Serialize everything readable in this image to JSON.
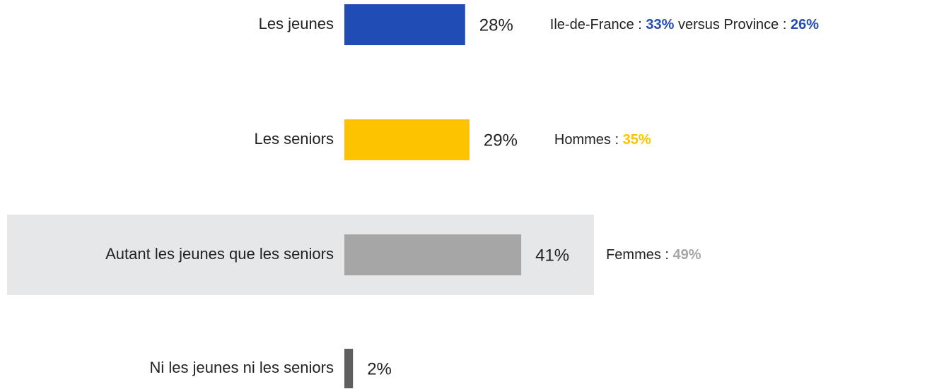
{
  "chart_data": {
    "type": "bar",
    "orientation": "horizontal",
    "categories": [
      "Les jeunes",
      "Les seniors",
      "Autant les jeunes que les seniors",
      "Ni les jeunes ni les seniors"
    ],
    "values": [
      28,
      29,
      41,
      2
    ],
    "value_labels": [
      "28%",
      "29%",
      "41%",
      "2%"
    ],
    "colors": [
      "#1f4db5",
      "#fdc300",
      "#a6a6a6",
      "#5f5f5f"
    ],
    "highlight_index": 2,
    "annotations": [
      [
        {
          "text": "Ile-de-France : "
        },
        {
          "text": "33%",
          "bold": true
        },
        {
          "text": " versus Province : "
        },
        {
          "text": "26%",
          "bold": true
        }
      ],
      [
        {
          "text": "Hommes : "
        },
        {
          "text": "35%",
          "bold": true
        }
      ],
      [
        {
          "text": "Femmes : "
        },
        {
          "text": "49%",
          "bold": true
        }
      ],
      []
    ]
  }
}
